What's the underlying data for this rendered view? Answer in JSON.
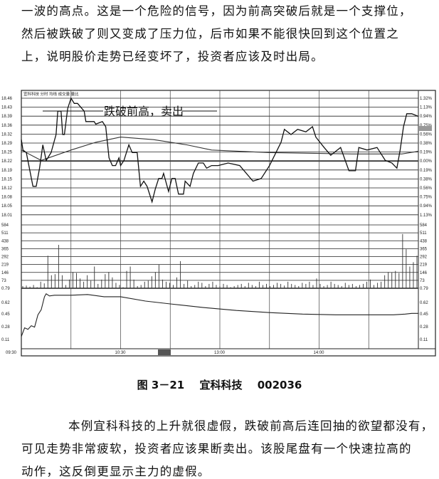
{
  "text_top": [
    "一波的高点。这是一个危险的信号，因为前高突破后就是一个支撑位，",
    "然后被跌破了则又变成了压力位，后市如果不能很快回到这个位置之",
    "上，说明股价走势已经变坏了，投资者应该及时出局。"
  ],
  "figure": {
    "header": "宜科科技  分时  均线  成交量  量比",
    "annotation": "跌破前高，卖出",
    "caption_label": "图 3－21",
    "caption_name": "宜科科技",
    "caption_code": "002036"
  },
  "text_bottom": [
    "本例宜科科技的上升就很虚假，跌破前高后连回抽的欲望都没有，",
    "可见走势非常疲软，投资者应该果断卖出。该股尾盘有一个快速拉高的",
    "动作，这反倒更显示主力的虚假。"
  ],
  "chart_data": {
    "type": "line",
    "title": "",
    "x_ticks": [
      "09:30",
      "10:30",
      "13:00",
      "14:00"
    ],
    "price_axis_labels": [
      "18.46",
      "18.43",
      "18.39",
      "18.36",
      "18.32",
      "18.29",
      "18.25",
      "18.22",
      "18.19",
      "18.15",
      "18.12",
      "18.08",
      "18.05",
      "18.01"
    ],
    "percent_axis_labels": [
      "1.32%",
      "1.13%",
      "0.94%",
      "0.75%",
      "0.56%",
      "0.38%",
      "0.19%",
      "0.00%",
      "0.19%",
      "0.38%",
      "0.56%",
      "0.75%",
      "0.94%",
      "1.13%"
    ],
    "volume_axis_labels": [
      "584",
      "511",
      "438",
      "365",
      "292",
      "219",
      "146",
      "73",
      "0.79"
    ],
    "ratio_axis_labels": [
      "0.62",
      "0.45",
      "0.28",
      "0.11"
    ],
    "price_ylim": [
      18.01,
      18.46
    ],
    "prev_close": 18.22,
    "price_series": {
      "minutes": [
        0,
        1,
        3,
        7,
        9,
        11,
        13,
        15,
        18,
        21,
        22,
        24,
        25,
        26,
        28,
        30,
        32,
        34,
        38,
        39,
        44,
        45,
        49,
        51,
        53,
        55,
        57,
        59,
        60,
        62,
        65,
        67,
        70,
        72,
        74,
        76,
        79,
        81,
        83,
        85,
        86,
        89,
        91,
        93,
        95,
        98,
        99,
        102,
        104,
        107,
        110,
        112,
        115,
        119,
        125,
        132,
        140,
        145,
        150,
        157,
        159,
        163,
        167,
        172,
        176,
        178,
        183,
        187,
        193,
        198,
        202,
        204,
        209,
        215,
        220,
        224,
        227,
        229,
        231,
        233,
        236,
        240
      ],
      "price": [
        18.3,
        18.26,
        18.25,
        18.12,
        18.12,
        18.19,
        18.28,
        18.22,
        18.25,
        18.32,
        18.41,
        18.41,
        18.32,
        18.32,
        18.42,
        18.46,
        18.44,
        18.44,
        18.41,
        18.37,
        18.37,
        18.36,
        18.37,
        18.35,
        18.23,
        18.2,
        18.2,
        18.23,
        18.2,
        18.22,
        18.28,
        18.25,
        18.25,
        18.12,
        18.14,
        18.12,
        18.06,
        18.11,
        18.15,
        18.15,
        18.17,
        18.1,
        18.15,
        18.15,
        18.09,
        18.09,
        18.14,
        18.12,
        18.17,
        18.21,
        18.21,
        18.19,
        18.2,
        18.2,
        18.21,
        18.2,
        18.14,
        18.15,
        18.2,
        18.29,
        18.34,
        18.32,
        18.34,
        18.33,
        18.35,
        18.31,
        18.27,
        18.24,
        18.27,
        18.18,
        18.18,
        18.27,
        18.26,
        18.27,
        18.22,
        18.21,
        18.19,
        18.26,
        18.35,
        18.4,
        18.4,
        18.39
      ]
    },
    "average_series": {
      "minutes": [
        0,
        12,
        30,
        45,
        60,
        80,
        100,
        115,
        150,
        200,
        230,
        240
      ],
      "price": [
        18.26,
        18.22,
        18.26,
        18.29,
        18.31,
        18.3,
        18.28,
        18.26,
        18.25,
        18.245,
        18.245,
        18.255
      ]
    },
    "volume": [
      20,
      25,
      15,
      30,
      10,
      60,
      45,
      300,
      120,
      130,
      400,
      120,
      30,
      80,
      150,
      140,
      90,
      60,
      120,
      70,
      200,
      40,
      80,
      130,
      150,
      100,
      50,
      30,
      10,
      160,
      200,
      80,
      20,
      30,
      60,
      70,
      110,
      150,
      220,
      80,
      60,
      50,
      30,
      100,
      250,
      40,
      70,
      20,
      30,
      60,
      50,
      20,
      40,
      60,
      30,
      20,
      40,
      30,
      10,
      20,
      30,
      40,
      20,
      50,
      30,
      20,
      60,
      30,
      40,
      20,
      30,
      50,
      40,
      25,
      60,
      40,
      30,
      20,
      50,
      40,
      60,
      30,
      90,
      40,
      20,
      30,
      60,
      40,
      30,
      20,
      50,
      30,
      40,
      20,
      30,
      40,
      60,
      80,
      30,
      50,
      60,
      120,
      150,
      146,
      160,
      140,
      500,
      360,
      200,
      240,
      300
    ],
    "volume_ylim": [
      0,
      584
    ],
    "ratio_series": {
      "minutes": [
        0,
        2,
        4,
        6,
        8,
        10,
        12,
        14,
        15,
        17,
        20,
        30,
        40,
        50,
        60,
        75,
        90,
        110,
        130,
        150,
        170,
        190,
        210,
        225,
        232,
        236,
        240
      ],
      "value": [
        0.15,
        0.27,
        0.25,
        0.3,
        0.28,
        0.45,
        0.52,
        0.7,
        0.74,
        0.71,
        0.72,
        0.72,
        0.73,
        0.7,
        0.7,
        0.64,
        0.6,
        0.55,
        0.51,
        0.48,
        0.46,
        0.45,
        0.45,
        0.45,
        0.46,
        0.47,
        0.47
      ]
    },
    "ratio_ylim": [
      0.0,
      0.79
    ]
  }
}
